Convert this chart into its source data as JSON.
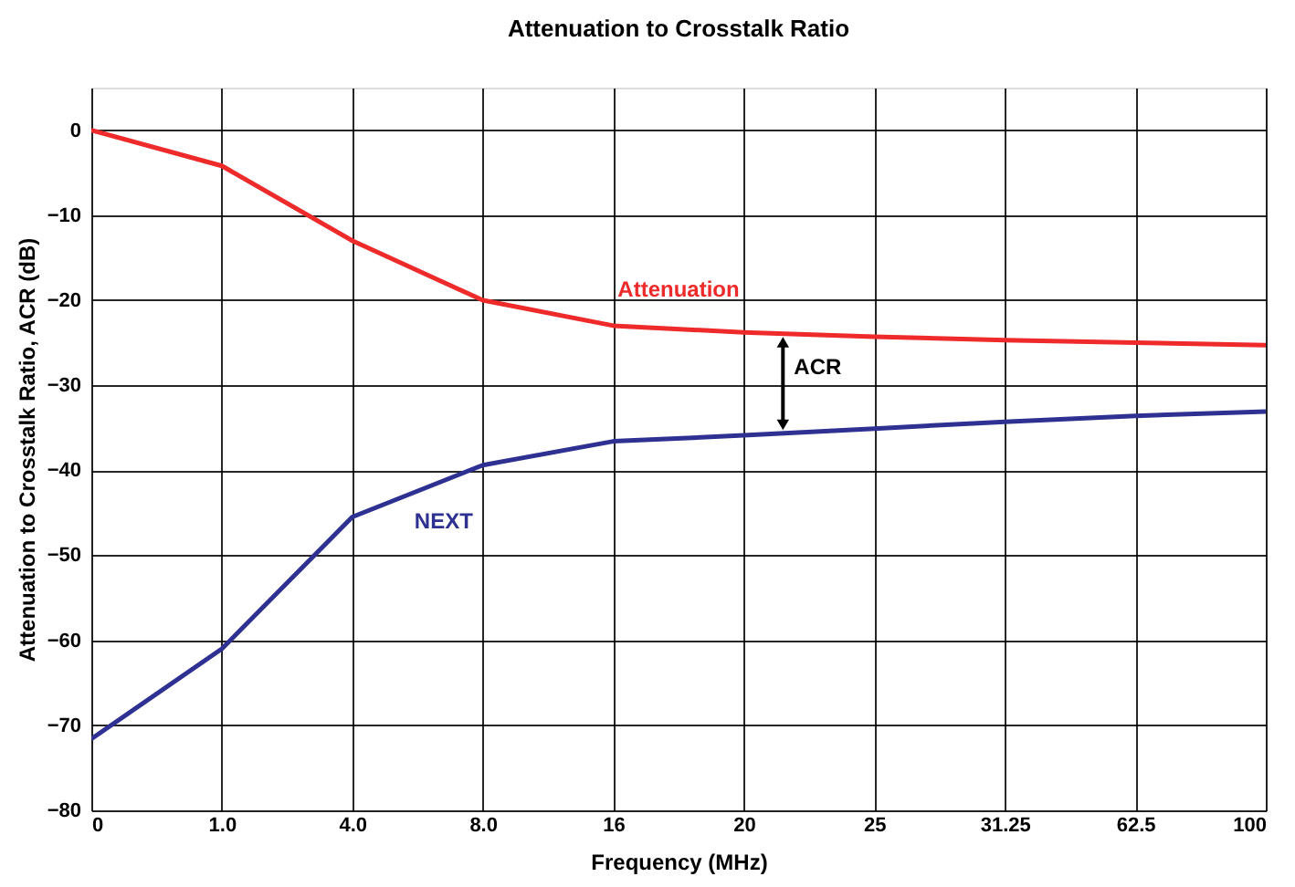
{
  "chart_data": {
    "type": "line",
    "title": "Attenuation to Crosstalk Ratio",
    "xlabel": "Frequency (MHz)",
    "ylabel": "Attenuation to Crosstalk Ratio, ACR (dB)",
    "categories": [
      "0",
      "1.0",
      "4.0",
      "8.0",
      "16",
      "20",
      "25",
      "31.25",
      "62.5",
      "100"
    ],
    "series": [
      {
        "name": "Attenuation",
        "color": "#ee2a2a",
        "values": [
          0,
          -4.2,
          -13,
          -20,
          -23,
          -23.8,
          -24.3,
          -24.7,
          -25,
          -25.3
        ]
      },
      {
        "name": "NEXT",
        "color": "#2e3192",
        "values": [
          -71.6,
          -61,
          -45.5,
          -39.4,
          -36.6,
          -35.9,
          -35.1,
          -34.3,
          -33.6,
          -33.1
        ]
      }
    ],
    "annotations": [
      "ACR"
    ],
    "ylim": [
      -80,
      5
    ],
    "yticks": [
      -80,
      -70,
      -60,
      -50,
      -40,
      -30,
      -20,
      -10,
      0
    ],
    "grid": true,
    "legend": false,
    "marker": "none",
    "line_style": "solid"
  }
}
